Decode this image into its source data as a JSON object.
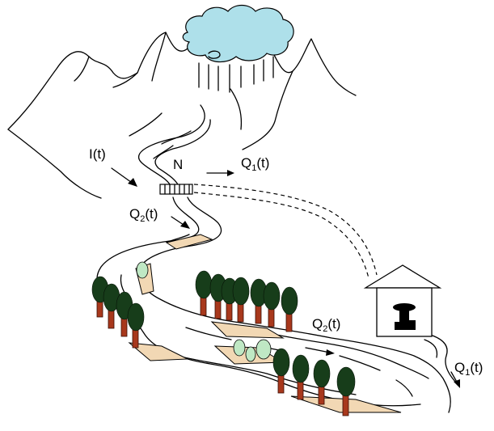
{
  "labels": {
    "inflow": "I(t)",
    "node": "N",
    "q1_upper_main": "Q",
    "q1_upper_sub": "1",
    "q1_upper_tail": "(t)",
    "q2_upper_main": "Q",
    "q2_upper_sub": "2",
    "q2_upper_tail": "(t)",
    "q2_lower_main": "Q",
    "q2_lower_sub": "2",
    "q2_lower_tail": "(t)",
    "q1_lower_main": "Q",
    "q1_lower_sub": "1",
    "q1_lower_tail": "(t)"
  },
  "colors": {
    "cloud": "#aee0ea",
    "sand": "#f2d8b4",
    "tree_crown": "#173d1a",
    "tree_trunk": "#a8381c",
    "bush": "#bfe8c4"
  }
}
